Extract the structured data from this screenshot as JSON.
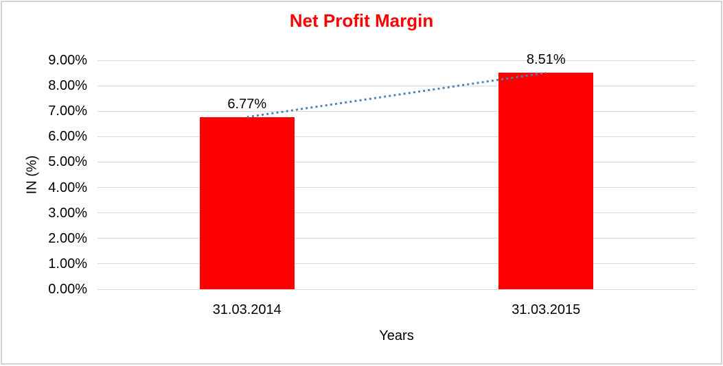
{
  "chart_data": {
    "type": "bar",
    "title": "Net Profit Margin",
    "xlabel": "Years",
    "ylabel": "IN (%)",
    "categories": [
      "31.03.2014",
      "31.03.2015"
    ],
    "values": [
      6.77,
      8.51
    ],
    "data_labels": [
      "6.77%",
      "8.51%"
    ],
    "ytick_labels": [
      "0.00%",
      "1.00%",
      "2.00%",
      "3.00%",
      "4.00%",
      "5.00%",
      "6.00%",
      "7.00%",
      "8.00%",
      "9.00%"
    ],
    "ylim": [
      0,
      9
    ],
    "ytick_step": 1,
    "grid": "horizontal",
    "legend_position": "none",
    "colors": {
      "bar": "#ff0000",
      "title": "#ff0000",
      "trendline": "#4f81bd",
      "gridline": "#d9d9d9",
      "text": "#000000",
      "frame_border": "#d3d3d3",
      "background": "#ffffff"
    },
    "trendline": {
      "style": "dotted",
      "connects": [
        "31.03.2014",
        "31.03.2015"
      ]
    }
  }
}
